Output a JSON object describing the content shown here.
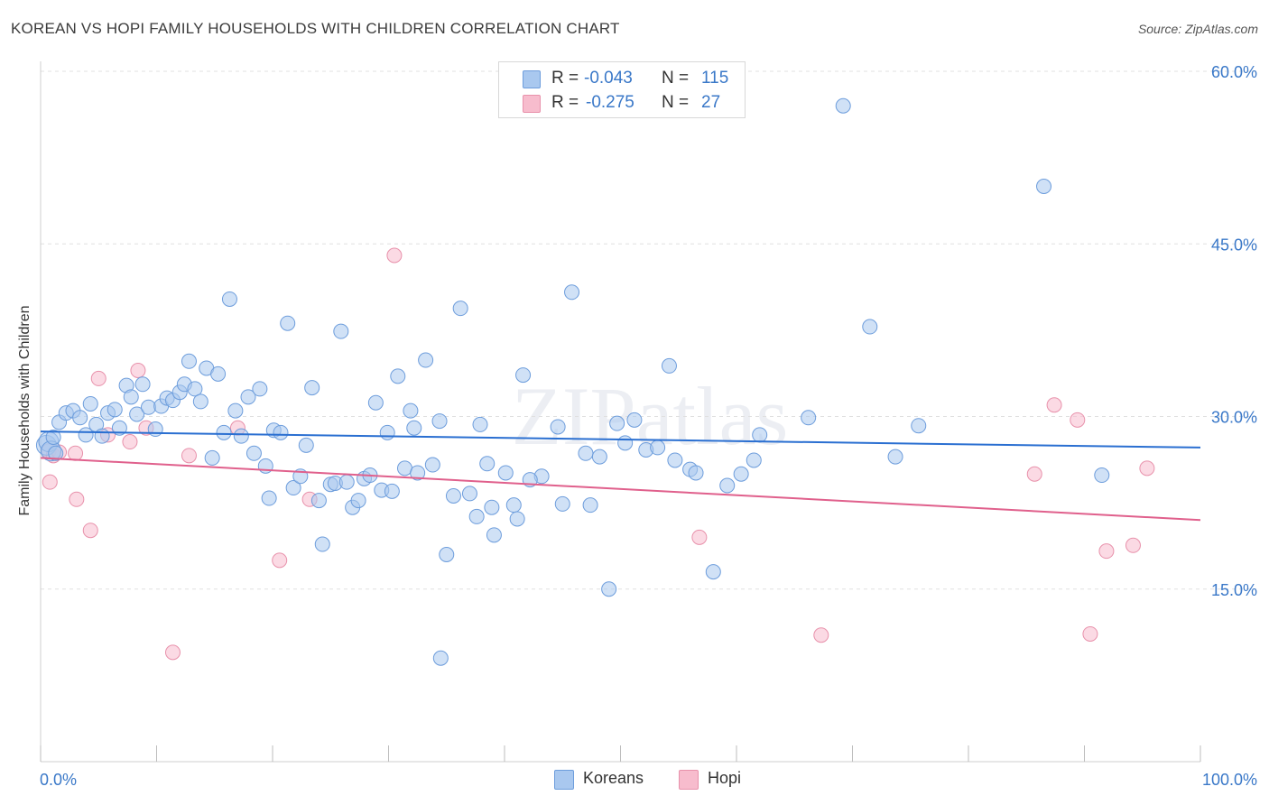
{
  "title": "KOREAN VS HOPI FAMILY HOUSEHOLDS WITH CHILDREN CORRELATION CHART",
  "source": "Source: ZipAtlas.com",
  "watermark": "ZIPatlas",
  "stats": [
    {
      "r_label": "R =",
      "r_value": "-0.043",
      "n_label": "N =",
      "n_value": "115"
    },
    {
      "r_label": "R =",
      "r_value": "-0.275",
      "n_label": "N =",
      "n_value": "27"
    }
  ],
  "legend": [
    {
      "label": "Koreans"
    },
    {
      "label": "Hopi"
    }
  ],
  "colors": {
    "korean_fill": "#a9c8ef",
    "korean_stroke": "#6d9ddc",
    "korean_line": "#2a6fd1",
    "hopi_fill": "#f7bccd",
    "hopi_stroke": "#e891ab",
    "hopi_line": "#e0608c",
    "axis_text": "#3a78c8",
    "grid": "#e0e0e0"
  },
  "chart_data": {
    "type": "scatter",
    "title": "KOREAN VS HOPI FAMILY HOUSEHOLDS WITH CHILDREN CORRELATION CHART",
    "xlabel": "",
    "ylabel": "Family Households with Children",
    "xlim": [
      0,
      100
    ],
    "ylim": [
      0,
      60
    ],
    "x_tick_labels": [
      "0.0%",
      "100.0%"
    ],
    "y_ticks": [
      15,
      30,
      45,
      60
    ],
    "y_tick_labels": [
      "15.0%",
      "30.0%",
      "45.0%",
      "60.0%"
    ],
    "series": [
      {
        "name": "Koreans",
        "r": -0.043,
        "n": 115,
        "trend": {
          "x": [
            0,
            100
          ],
          "y": [
            28.7,
            27.3
          ]
        },
        "points": [
          [
            0.5,
            27.5
          ],
          [
            0.7,
            27.8
          ],
          [
            0.9,
            27.0
          ],
          [
            1.1,
            28.2
          ],
          [
            1.3,
            26.8
          ],
          [
            1.6,
            29.5
          ],
          [
            2.2,
            30.3
          ],
          [
            2.8,
            30.5
          ],
          [
            3.4,
            29.9
          ],
          [
            3.9,
            28.4
          ],
          [
            4.3,
            31.1
          ],
          [
            4.8,
            29.3
          ],
          [
            5.3,
            28.3
          ],
          [
            5.8,
            30.3
          ],
          [
            6.4,
            30.6
          ],
          [
            6.8,
            29.0
          ],
          [
            7.4,
            32.7
          ],
          [
            7.8,
            31.7
          ],
          [
            8.3,
            30.2
          ],
          [
            8.8,
            32.8
          ],
          [
            9.3,
            30.8
          ],
          [
            9.9,
            28.9
          ],
          [
            10.4,
            30.9
          ],
          [
            10.9,
            31.6
          ],
          [
            11.4,
            31.4
          ],
          [
            12.0,
            32.1
          ],
          [
            12.4,
            32.8
          ],
          [
            12.8,
            34.8
          ],
          [
            13.3,
            32.4
          ],
          [
            13.8,
            31.3
          ],
          [
            14.3,
            34.2
          ],
          [
            14.8,
            26.4
          ],
          [
            15.3,
            33.7
          ],
          [
            15.8,
            28.6
          ],
          [
            16.3,
            40.2
          ],
          [
            16.8,
            30.5
          ],
          [
            17.3,
            28.3
          ],
          [
            17.9,
            31.7
          ],
          [
            18.4,
            26.8
          ],
          [
            18.9,
            32.4
          ],
          [
            19.4,
            25.7
          ],
          [
            19.7,
            22.9
          ],
          [
            20.1,
            28.8
          ],
          [
            20.7,
            28.6
          ],
          [
            21.3,
            38.1
          ],
          [
            21.8,
            23.8
          ],
          [
            22.4,
            24.8
          ],
          [
            22.9,
            27.5
          ],
          [
            23.4,
            32.5
          ],
          [
            24.0,
            22.7
          ],
          [
            24.3,
            18.9
          ],
          [
            25.0,
            24.1
          ],
          [
            25.4,
            24.2
          ],
          [
            25.9,
            37.4
          ],
          [
            26.4,
            24.3
          ],
          [
            26.9,
            22.1
          ],
          [
            27.4,
            22.7
          ],
          [
            27.9,
            24.6
          ],
          [
            28.4,
            24.9
          ],
          [
            28.9,
            31.2
          ],
          [
            29.4,
            23.6
          ],
          [
            29.9,
            28.6
          ],
          [
            30.3,
            23.5
          ],
          [
            30.8,
            33.5
          ],
          [
            31.4,
            25.5
          ],
          [
            31.9,
            30.5
          ],
          [
            32.2,
            29.0
          ],
          [
            32.5,
            25.1
          ],
          [
            33.2,
            34.9
          ],
          [
            33.8,
            25.8
          ],
          [
            34.4,
            29.6
          ],
          [
            35.0,
            18.0
          ],
          [
            35.6,
            23.1
          ],
          [
            36.2,
            39.4
          ],
          [
            37.0,
            23.3
          ],
          [
            37.6,
            21.3
          ],
          [
            37.9,
            29.3
          ],
          [
            38.5,
            25.9
          ],
          [
            38.9,
            22.1
          ],
          [
            39.1,
            19.7
          ],
          [
            40.1,
            25.1
          ],
          [
            40.8,
            22.3
          ],
          [
            41.1,
            21.1
          ],
          [
            41.6,
            33.6
          ],
          [
            43.2,
            24.8
          ],
          [
            44.6,
            29.1
          ],
          [
            45.0,
            22.4
          ],
          [
            45.8,
            40.8
          ],
          [
            47.0,
            26.8
          ],
          [
            47.4,
            22.3
          ],
          [
            48.2,
            26.5
          ],
          [
            49.0,
            15.0
          ],
          [
            49.7,
            29.4
          ],
          [
            50.4,
            27.7
          ],
          [
            51.2,
            29.7
          ],
          [
            52.2,
            27.1
          ],
          [
            53.2,
            27.3
          ],
          [
            54.2,
            34.4
          ],
          [
            54.7,
            26.2
          ],
          [
            56.0,
            25.4
          ],
          [
            56.5,
            25.1
          ],
          [
            58.0,
            16.5
          ],
          [
            59.2,
            24.0
          ],
          [
            60.4,
            25.0
          ],
          [
            61.5,
            26.2
          ],
          [
            62.0,
            28.4
          ],
          [
            66.2,
            29.9
          ],
          [
            71.5,
            37.8
          ],
          [
            73.7,
            26.5
          ],
          [
            75.7,
            29.2
          ],
          [
            86.5,
            50.0
          ],
          [
            91.5,
            24.9
          ],
          [
            69.2,
            57.0
          ],
          [
            42.2,
            24.5
          ],
          [
            34.5,
            9.0
          ]
        ]
      },
      {
        "name": "Hopi",
        "r": -0.275,
        "n": 27,
        "trend": {
          "x": [
            0,
            100
          ],
          "y": [
            26.4,
            21.0
          ]
        },
        "points": [
          [
            0.7,
            27.0
          ],
          [
            1.1,
            26.6
          ],
          [
            0.8,
            24.3
          ],
          [
            1.6,
            26.9
          ],
          [
            3.0,
            26.8
          ],
          [
            3.1,
            22.8
          ],
          [
            4.3,
            20.1
          ],
          [
            5.0,
            33.3
          ],
          [
            5.8,
            28.4
          ],
          [
            7.7,
            27.8
          ],
          [
            8.4,
            34.0
          ],
          [
            9.1,
            29.0
          ],
          [
            11.4,
            9.5
          ],
          [
            12.8,
            26.6
          ],
          [
            17.0,
            29.0
          ],
          [
            20.6,
            17.5
          ],
          [
            23.2,
            22.8
          ],
          [
            30.5,
            44.0
          ],
          [
            56.8,
            19.5
          ],
          [
            67.3,
            11.0
          ],
          [
            85.7,
            25.0
          ],
          [
            87.4,
            31.0
          ],
          [
            89.4,
            29.7
          ],
          [
            90.5,
            11.1
          ],
          [
            91.9,
            18.3
          ],
          [
            94.2,
            18.8
          ],
          [
            95.4,
            25.5
          ]
        ]
      }
    ]
  }
}
